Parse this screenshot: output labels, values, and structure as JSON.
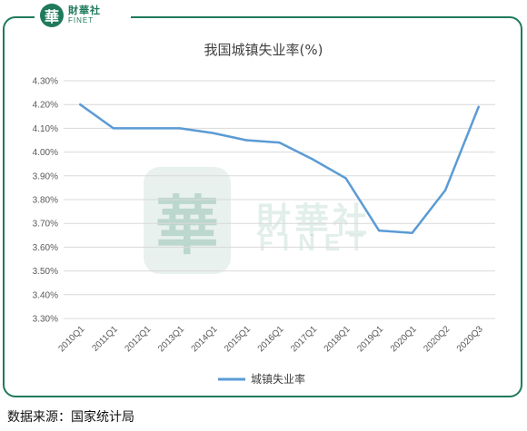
{
  "logo": {
    "badge": "華",
    "cn": "財華社",
    "en": "FINET"
  },
  "watermark": {
    "seal": "華",
    "cn": "財華社",
    "en": "FINET"
  },
  "source": "数据来源：国家统计局",
  "chart_data": {
    "type": "line",
    "title": "我国城镇失业率(%)",
    "categories": [
      "2010Q1",
      "2011Q1",
      "2012Q1",
      "2013Q1",
      "2014Q1",
      "2015Q1",
      "2016Q1",
      "2017Q1",
      "2018Q1",
      "2019Q1",
      "2020Q1",
      "2020Q2",
      "2020Q3"
    ],
    "series": [
      {
        "name": "城镇失业率",
        "values": [
          4.2,
          4.1,
          4.1,
          4.1,
          4.08,
          4.05,
          4.04,
          3.97,
          3.89,
          3.67,
          3.66,
          3.84,
          4.19
        ],
        "color": "#5b9bd5"
      }
    ],
    "ylim": [
      3.3,
      4.3
    ],
    "yticks": [
      3.3,
      3.4,
      3.5,
      3.6,
      3.7,
      3.8,
      3.9,
      4.0,
      4.1,
      4.2,
      4.3
    ],
    "ytick_labels": [
      "3.30%",
      "3.40%",
      "3.50%",
      "3.60%",
      "3.70%",
      "3.80%",
      "3.90%",
      "4.00%",
      "4.10%",
      "4.20%",
      "4.30%"
    ],
    "grid": true,
    "legend": "bottom"
  }
}
